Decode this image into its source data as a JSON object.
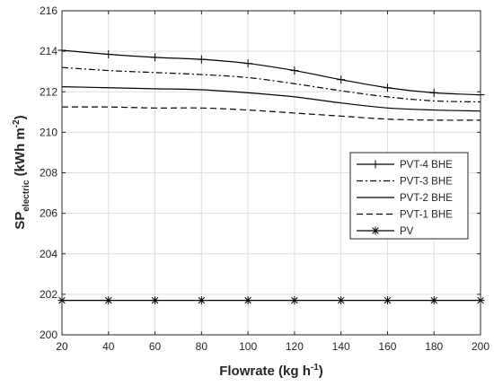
{
  "chart_data": {
    "type": "line",
    "title": "",
    "xlabel": {
      "main": "Flowrate (kg h",
      "sup": "-1",
      "tail": ")"
    },
    "ylabel": {
      "main": "SP",
      "sub": "electric",
      "rest": " (kWh m",
      "sup": "-2",
      "tail": ")"
    },
    "x": [
      20,
      40,
      60,
      80,
      100,
      120,
      140,
      160,
      180,
      200
    ],
    "xlim": [
      20,
      200
    ],
    "ylim": [
      200,
      216
    ],
    "xticks": [
      20,
      40,
      60,
      80,
      100,
      120,
      140,
      160,
      180,
      200
    ],
    "yticks": [
      200,
      202,
      204,
      206,
      208,
      210,
      212,
      214,
      216
    ],
    "grid": true,
    "legend_position": "center-right",
    "series": [
      {
        "name": "PVT-4 BHE",
        "style": "solid",
        "marker": "plus",
        "color": "#000000",
        "values": [
          214.05,
          213.85,
          213.7,
          213.6,
          213.4,
          213.05,
          212.6,
          212.2,
          211.95,
          211.85
        ]
      },
      {
        "name": "PVT-3 BHE",
        "style": "dashdot",
        "marker": "none",
        "color": "#000000",
        "values": [
          213.2,
          213.05,
          212.95,
          212.85,
          212.7,
          212.4,
          212.05,
          211.75,
          211.55,
          211.5
        ]
      },
      {
        "name": "PVT-2 BHE",
        "style": "solid",
        "marker": "none",
        "color": "#000000",
        "values": [
          212.25,
          212.2,
          212.15,
          212.1,
          211.95,
          211.75,
          211.45,
          211.2,
          211.1,
          211.05
        ]
      },
      {
        "name": "PVT-1 BHE",
        "style": "dashed",
        "marker": "none",
        "color": "#000000",
        "values": [
          211.25,
          211.25,
          211.2,
          211.2,
          211.1,
          210.95,
          210.8,
          210.65,
          210.6,
          210.6
        ]
      },
      {
        "name": "PV",
        "style": "solid",
        "marker": "asterisk",
        "color": "#000000",
        "values": [
          201.7,
          201.7,
          201.7,
          201.7,
          201.7,
          201.7,
          201.7,
          201.7,
          201.7,
          201.7
        ]
      }
    ]
  }
}
